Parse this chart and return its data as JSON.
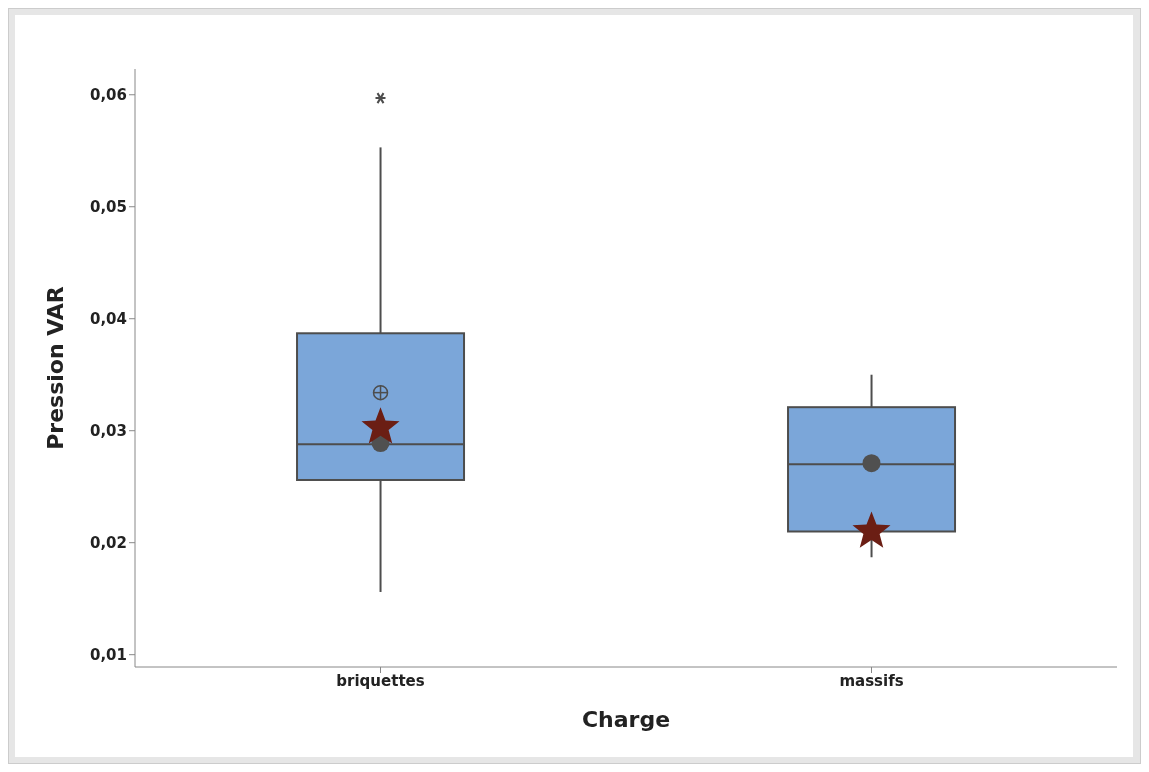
{
  "chart_data": {
    "type": "box",
    "xlabel": "Charge",
    "ylabel": "Pression VAR",
    "categories": [
      "briquettes",
      "massifs"
    ],
    "color": "#7ba6d9",
    "boxes": [
      {
        "low": 0.0156,
        "q1": 0.0256,
        "median": 0.0288,
        "q3": 0.0387,
        "high": 0.0553,
        "mean": 0.0334,
        "outliers": [
          0.0597
        ]
      },
      {
        "low": 0.0187,
        "q1": 0.021,
        "median": 0.027,
        "q3": 0.0321,
        "high": 0.035
      }
    ],
    "series": [
      {
        "type": "scatter",
        "color": "#505050",
        "marker": "circle",
        "x": [
          "briquettes",
          "massifs"
        ],
        "values": [
          0.0289,
          0.0271
        ]
      },
      {
        "type": "scatter",
        "color": "#6b1e14",
        "marker": "star",
        "x": [
          "briquettes",
          "massifs"
        ],
        "values": [
          0.0303,
          0.021
        ]
      }
    ],
    "ylim": [
      0.0089,
      0.0623
    ],
    "yticks": [
      {
        "value": 0.01,
        "label": "0,01"
      },
      {
        "value": 0.02,
        "label": "0,02"
      },
      {
        "value": 0.03,
        "label": "0,03"
      },
      {
        "value": 0.04,
        "label": "0,04"
      },
      {
        "value": 0.05,
        "label": "0,05"
      },
      {
        "value": 0.06,
        "label": "0,06"
      }
    ],
    "grid": false,
    "legend": false
  }
}
